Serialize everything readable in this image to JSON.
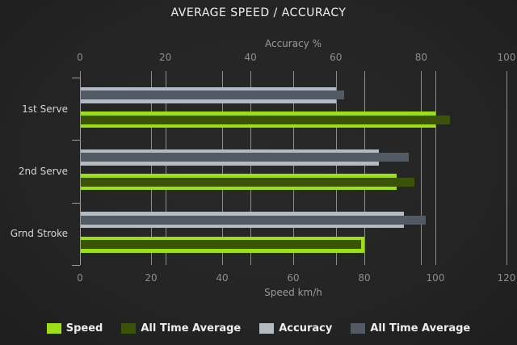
{
  "title": "AVERAGE SPEED / ACCURACY",
  "colors": {
    "speed": "#9CDF16",
    "speed_avg": "#3A5306",
    "accuracy": "#B4BAC1",
    "accuracy_avg": "#525A64",
    "gridline": "#8C8C8C",
    "tick_label": "#8D8D8D",
    "axis_title": "#9A9A9A",
    "category_label": "#D5D5D5",
    "title_text": "#F0F0F0",
    "legend_text": "#EDEDED",
    "background": "#242424"
  },
  "chart_data": {
    "type": "bar",
    "orientation": "horizontal",
    "title": "AVERAGE SPEED / ACCURACY",
    "categories": [
      "1st Serve",
      "2nd Serve",
      "Grnd Stroke"
    ],
    "axes": {
      "top": {
        "label": "Accuracy %",
        "ticks": [
          0,
          20,
          40,
          60,
          80,
          100
        ],
        "min": 0,
        "max": 100
      },
      "bottom": {
        "label": "Speed km/h",
        "ticks": [
          0,
          20,
          40,
          60,
          80,
          100,
          120
        ],
        "min": 0,
        "max": 120
      }
    },
    "series": [
      {
        "name": "Speed",
        "axis": "bottom",
        "color_key": "speed",
        "values": [
          100,
          89,
          80
        ]
      },
      {
        "name": "All Time Average",
        "axis": "bottom",
        "color_key": "speed_avg",
        "values": [
          104,
          94,
          79
        ]
      },
      {
        "name": "Accuracy",
        "axis": "top",
        "color_key": "accuracy",
        "values": [
          60,
          70,
          76
        ]
      },
      {
        "name": "All Time Average",
        "axis": "top",
        "color_key": "accuracy_avg",
        "values": [
          62,
          77,
          81
        ]
      }
    ],
    "legend": [
      {
        "label": "Speed",
        "color_key": "speed"
      },
      {
        "label": "All Time Average",
        "color_key": "speed_avg"
      },
      {
        "label": "Accuracy",
        "color_key": "accuracy"
      },
      {
        "label": "All Time Average",
        "color_key": "accuracy_avg"
      }
    ],
    "grid": true,
    "legend_position": "bottom"
  }
}
